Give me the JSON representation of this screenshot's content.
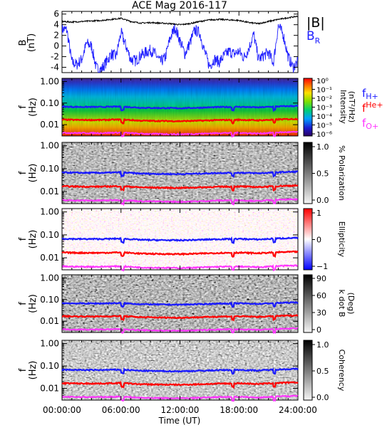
{
  "title": "ACE Mag 2016-117",
  "time_axis": {
    "xlabel": "Time (UT)",
    "ticks": [
      "00:00:00",
      "06:00:00",
      "12:00:00",
      "18:00:00",
      "24:00:00"
    ],
    "range_hours": [
      0,
      24
    ]
  },
  "colors": {
    "B_mag": "#000000",
    "B_R": "#1f1fff",
    "f_H": "#1a1aff",
    "f_He": "#ff0000",
    "f_O": "#ff33ff"
  },
  "labels": {
    "B_mag": "|B|",
    "B_R": "B",
    "B_R_sub": "R",
    "fH": "f",
    "fH_sup": "H+",
    "fHe": "f",
    "fHe_sup": "He+",
    "fO": "f",
    "fO_sup": "O+"
  },
  "panels": {
    "field": {
      "ylabel": "B",
      "yunit": "(nT)",
      "yticks": [
        "6",
        "4",
        "2",
        "0",
        "-2",
        "-4"
      ],
      "ylim": [
        -5,
        6.5
      ]
    },
    "freq": {
      "ylabel": "f",
      "yunit": "(Hz)",
      "yticks": [
        "1.00",
        "0.10",
        "0.01"
      ],
      "ylim": [
        0.003,
        1.4
      ],
      "log": true
    },
    "intensity": {
      "cb_label": "Intensity",
      "cb_unit": "(nT²/Hz)",
      "cb_ticks": [
        "10⁰",
        "10⁻¹",
        "10⁻²",
        "10⁻³",
        "10⁻⁴",
        "10⁻⁵",
        "10⁻⁶"
      ]
    },
    "polarization": {
      "cb_label": "% Polarization",
      "cb_ticks": [
        "1.0",
        "0.5",
        "0.0"
      ]
    },
    "ellipticity": {
      "cb_label": "Ellipticity",
      "cb_ticks": [
        "1",
        "0",
        "−1"
      ]
    },
    "kdotb": {
      "cb_label": "k dot B",
      "cb_unit": "(Deg)",
      "cb_ticks": [
        "90",
        "60",
        "30",
        "0"
      ]
    },
    "coherency": {
      "cb_label": "Coherency",
      "cb_ticks": [
        "1.0",
        "0.5",
        "0.0"
      ]
    }
  },
  "chart_data": {
    "type": "line",
    "title": "ACE Mag 2016-117",
    "xlabel": "Time (UT)",
    "x_unit": "hours",
    "xlim": [
      0,
      24
    ],
    "series": [
      {
        "name": "|B|",
        "x": [
          0,
          1,
          2,
          3,
          4,
          5,
          6,
          7,
          8,
          9,
          10,
          11,
          12,
          13,
          14,
          15,
          16,
          17,
          18,
          19,
          20,
          21,
          22,
          23,
          24
        ],
        "values": [
          4.6,
          4.5,
          4.6,
          4.7,
          4.8,
          5.0,
          5.2,
          4.6,
          4.3,
          4.4,
          4.3,
          4.2,
          4.0,
          4.2,
          4.6,
          4.9,
          5.0,
          4.9,
          4.8,
          4.4,
          4.2,
          4.6,
          5.0,
          5.3,
          5.6
        ]
      },
      {
        "name": "B_R",
        "x": [
          0,
          0.5,
          1,
          1.5,
          2,
          2.5,
          3,
          3.5,
          4,
          4.5,
          5,
          5.5,
          6,
          6.5,
          7,
          7.5,
          8,
          8.5,
          9,
          9.5,
          10,
          10.5,
          11,
          11.5,
          12,
          12.5,
          13,
          13.5,
          14,
          14.5,
          15,
          15.5,
          16,
          16.5,
          17,
          17.5,
          18,
          18.5,
          19,
          19.5,
          20,
          20.5,
          21,
          21.5,
          22,
          22.5,
          23,
          23.5,
          24
        ],
        "values": [
          3.2,
          3.0,
          -3.0,
          -3.5,
          -2.5,
          0.5,
          0.0,
          -4.2,
          -4.4,
          -3.0,
          -1.5,
          -2.0,
          2.5,
          0.0,
          -2.5,
          -2.8,
          -1.8,
          -1.2,
          -0.8,
          -1.5,
          -3.0,
          -2.2,
          1.5,
          3.5,
          1.0,
          -1.5,
          0.5,
          3.0,
          2.5,
          -1.0,
          -3.8,
          -2.5,
          -3.0,
          -1.8,
          -1.0,
          -1.5,
          -1.0,
          -2.2,
          -0.5,
          2.2,
          -2.5,
          -1.8,
          -1.2,
          -3.2,
          3.8,
          2.2,
          -2.0,
          -4.0,
          -3.0
        ]
      },
      {
        "name": "f_H+",
        "x": [
          0,
          2,
          4,
          6,
          8,
          10,
          12,
          14,
          16,
          18,
          20,
          22,
          24
        ],
        "values": [
          0.068,
          0.066,
          0.066,
          0.069,
          0.061,
          0.059,
          0.058,
          0.061,
          0.065,
          0.067,
          0.063,
          0.07,
          0.074
        ]
      },
      {
        "name": "f_He+",
        "x": [
          0,
          2,
          4,
          6,
          8,
          10,
          12,
          14,
          16,
          18,
          20,
          22,
          24
        ],
        "values": [
          0.017,
          0.0165,
          0.0165,
          0.0173,
          0.0153,
          0.0148,
          0.0145,
          0.0153,
          0.0163,
          0.0168,
          0.0158,
          0.0175,
          0.0185
        ]
      },
      {
        "name": "f_O+",
        "x": [
          0,
          2,
          4,
          6,
          8,
          10,
          12,
          14,
          16,
          18,
          20,
          22,
          24
        ],
        "values": [
          0.0042,
          0.0041,
          0.0041,
          0.0043,
          0.0038,
          0.0037,
          0.0036,
          0.0038,
          0.0041,
          0.0042,
          0.0039,
          0.0044,
          0.0046
        ]
      }
    ]
  }
}
